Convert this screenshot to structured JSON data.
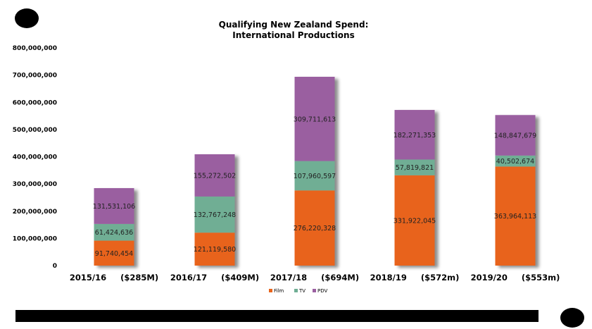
{
  "chart_data": {
    "type": "bar",
    "stacked": true,
    "title": "Qualifying New Zealand Spend:",
    "subtitle": "International Productions",
    "categories": [
      "2015/16     ($285M)",
      "2016/17     ($409M)",
      "2017/18     ($694M)",
      "2018/19     ($572m)",
      "2019/20     ($553m)"
    ],
    "series": [
      {
        "name": "Film",
        "color": "#E8641B",
        "values": [
          91740454,
          121119580,
          276220328,
          331922045,
          363964113
        ]
      },
      {
        "name": "TV",
        "color": "#6FAE94",
        "values": [
          61424636,
          132767248,
          107960597,
          57819821,
          40502674
        ]
      },
      {
        "name": "PDV",
        "color": "#9A5FA0",
        "values": [
          131531106,
          155272502,
          309711613,
          182271353,
          148847679
        ]
      }
    ],
    "data_labels": [
      [
        "91,740,454",
        "121,119,580",
        "276,220,328",
        "331,922,045",
        "363,964,113"
      ],
      [
        "61,424,636",
        "132,767,248",
        "107,960,597",
        "57,819,821",
        "40,502,674"
      ],
      [
        "131,531,106",
        "155,272,502",
        "309,711,613",
        "182,271,353",
        "148,847,679"
      ]
    ],
    "y_ticks": [
      "0",
      "100,000,000",
      "200,000,000",
      "300,000,000",
      "400,000,000",
      "500,000,000",
      "600,000,000",
      "700,000,000",
      "800,000,000"
    ],
    "ylim": [
      0,
      800000000
    ],
    "grid": false,
    "legend_position": "bottom"
  }
}
